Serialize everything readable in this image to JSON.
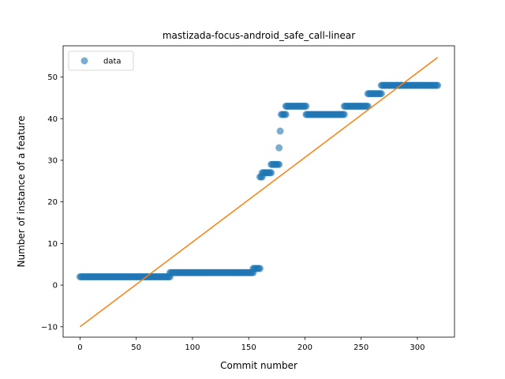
{
  "chart_data": {
    "type": "scatter",
    "title": "mastizada-focus-android_safe_call-linear",
    "xlabel": "Commit number",
    "ylabel": "Number of instance of a feature",
    "xlim": [
      -15,
      333
    ],
    "ylim": [
      -12.5,
      57.5
    ],
    "xticks": [
      0,
      50,
      100,
      150,
      200,
      250,
      300
    ],
    "yticks": [
      -10,
      0,
      10,
      20,
      30,
      40,
      50
    ],
    "legend_location": "upper-left",
    "grid": false,
    "series": [
      {
        "name": "data",
        "kind": "scatter",
        "color": "#1f77b4",
        "alpha": 0.6,
        "segments": [
          {
            "x_start": 0,
            "x_end": 80,
            "y": 2
          },
          {
            "x_start": 80,
            "x_end": 154,
            "y": 3
          },
          {
            "x_start": 154,
            "x_end": 160,
            "y": 4
          },
          {
            "x_start": 160,
            "x_end": 162,
            "y": 26
          },
          {
            "x_start": 162,
            "x_end": 170,
            "y": 27
          },
          {
            "x_start": 170,
            "x_end": 177,
            "y": 29
          },
          {
            "x_start": 177,
            "x_end": 177,
            "y": 33
          },
          {
            "x_start": 178,
            "x_end": 178,
            "y": 37
          },
          {
            "x_start": 179,
            "x_end": 183,
            "y": 41
          },
          {
            "x_start": 183,
            "x_end": 201,
            "y": 43
          },
          {
            "x_start": 201,
            "x_end": 235,
            "y": 41
          },
          {
            "x_start": 235,
            "x_end": 256,
            "y": 43
          },
          {
            "x_start": 256,
            "x_end": 268,
            "y": 46
          },
          {
            "x_start": 268,
            "x_end": 318,
            "y": 48
          }
        ]
      },
      {
        "name": "",
        "kind": "line",
        "color": "#ff7f0e",
        "points": [
          [
            0,
            -10
          ],
          [
            318,
            54.7
          ]
        ]
      }
    ]
  }
}
